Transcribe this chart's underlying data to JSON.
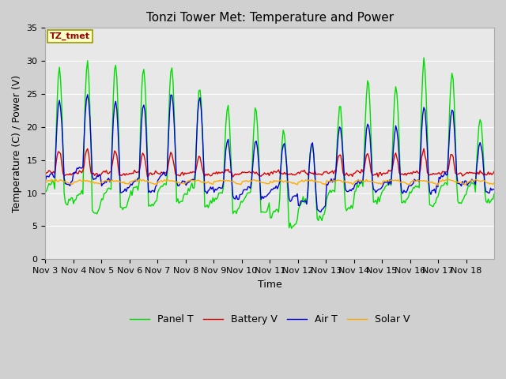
{
  "title": "Tonzi Tower Met: Temperature and Power",
  "xlabel": "Time",
  "ylabel": "Temperature (C) / Power (V)",
  "annotation": "TZ_tmet",
  "ylim": [
    0,
    35
  ],
  "yticks": [
    0,
    5,
    10,
    15,
    20,
    25,
    30,
    35
  ],
  "xtick_labels": [
    "Nov 3",
    "Nov 4",
    "Nov 5",
    "Nov 6",
    "Nov 7",
    "Nov 8",
    "Nov 9",
    "Nov 10",
    "Nov 11",
    "Nov 12",
    "Nov 13",
    "Nov 14",
    "Nov 15",
    "Nov 16",
    "Nov 17",
    "Nov 18"
  ],
  "legend_labels": [
    "Panel T",
    "Battery V",
    "Air T",
    "Solar V"
  ],
  "colors": {
    "Panel T": "#00dd00",
    "Battery V": "#dd0000",
    "Air T": "#0000dd",
    "Solar V": "#ffaa00"
  },
  "fig_bg": "#d0d0d0",
  "plot_bg": "#e8e8e8",
  "title_fontsize": 11,
  "axis_fontsize": 9,
  "tick_fontsize": 8,
  "annotation_bg": "#ffffcc",
  "annotation_fg": "#990000",
  "annotation_border": "#999900"
}
